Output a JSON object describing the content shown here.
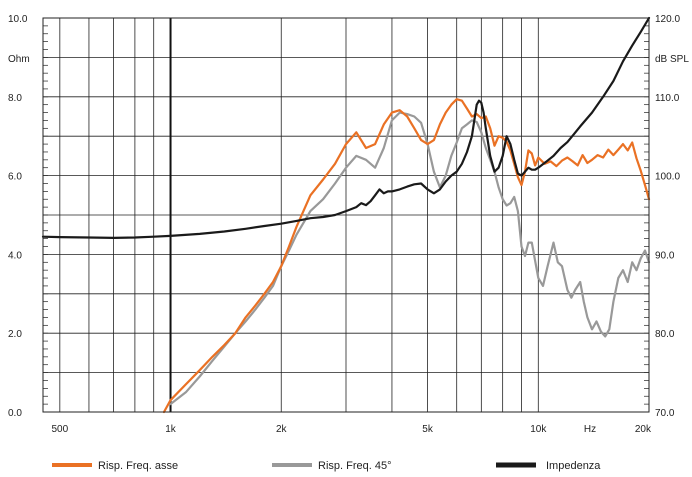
{
  "chart_data": {
    "type": "line",
    "x_scale": "log",
    "x_unit_label": "Hz",
    "xlim": [
      450,
      20000
    ],
    "x_ticks": [
      {
        "value": 500,
        "label": "500"
      },
      {
        "value": 1000,
        "label": "1k"
      },
      {
        "value": 2000,
        "label": "2k"
      },
      {
        "value": 5000,
        "label": "5k"
      },
      {
        "value": 10000,
        "label": "10k"
      },
      {
        "value": 20000,
        "label": "20k"
      }
    ],
    "left_axis": {
      "unit": "Ohm",
      "ylim": [
        0,
        10
      ],
      "ticks": [
        {
          "value": 0,
          "label": "0.0"
        },
        {
          "value": 2,
          "label": "2.0"
        },
        {
          "value": 4,
          "label": "4.0"
        },
        {
          "value": 6,
          "label": "6.0"
        },
        {
          "value": 8,
          "label": "8.0"
        },
        {
          "value": 10,
          "label": "10.0"
        }
      ]
    },
    "right_axis": {
      "unit": "dB SPL",
      "ylim": [
        70,
        120
      ],
      "ticks": [
        {
          "value": 70,
          "label": "70.0"
        },
        {
          "value": 80,
          "label": "80.0"
        },
        {
          "value": 90,
          "label": "90.0"
        },
        {
          "value": 100,
          "label": "100.0"
        },
        {
          "value": 110,
          "label": "110.0"
        },
        {
          "value": 120,
          "label": "120.0"
        }
      ]
    },
    "grid": true,
    "legend_position": "bottom",
    "series": [
      {
        "name": "Risp. Freq. asse",
        "axis": "right",
        "color": "#ea7124",
        "x": [
          960,
          1000,
          1100,
          1200,
          1300,
          1400,
          1500,
          1600,
          1700,
          1800,
          1900,
          2000,
          2100,
          2200,
          2400,
          2600,
          2800,
          3000,
          3200,
          3400,
          3600,
          3800,
          4000,
          4200,
          4400,
          4600,
          4800,
          5000,
          5200,
          5400,
          5600,
          5800,
          6000,
          6200,
          6400,
          6600,
          6800,
          7000,
          7200,
          7400,
          7600,
          7800,
          8000,
          8200,
          8400,
          8600,
          8800,
          9000,
          9200,
          9400,
          9600,
          9800,
          10000,
          10400,
          10800,
          11200,
          11600,
          12000,
          12400,
          12800,
          13200,
          13600,
          14000,
          14500,
          15000,
          15500,
          16000,
          16500,
          17000,
          17500,
          18000,
          18500,
          19000,
          19500,
          20000
        ],
        "y": [
          70,
          71.5,
          73.5,
          75.3,
          77,
          78.5,
          80,
          82,
          83.5,
          85,
          86.5,
          88.5,
          91,
          93.5,
          97.5,
          99.5,
          101.5,
          104,
          105.5,
          103.5,
          104,
          106.5,
          108,
          108.3,
          107.5,
          106,
          104.5,
          104,
          104.5,
          106.5,
          108,
          109,
          109.7,
          109.5,
          108.5,
          107.5,
          107.8,
          107.3,
          107.5,
          106,
          103.8,
          105,
          104.8,
          104.3,
          103.2,
          101.5,
          99.8,
          98.8,
          100.5,
          103.2,
          102.8,
          101.3,
          102.3,
          101.5,
          101.8,
          101.2,
          101.9,
          102.3,
          101.8,
          101.3,
          102.6,
          101.6,
          102,
          102.6,
          102.3,
          103.3,
          102.6,
          103.3,
          104,
          103.2,
          104.2,
          102.2,
          100.6,
          98.8,
          97
        ]
      },
      {
        "name": "Risp. Freq. 45°",
        "axis": "right",
        "color": "#999999",
        "x": [
          1000,
          1100,
          1200,
          1300,
          1400,
          1500,
          1600,
          1700,
          1800,
          1900,
          2000,
          2100,
          2200,
          2400,
          2600,
          2800,
          3000,
          3200,
          3400,
          3600,
          3800,
          4000,
          4200,
          4400,
          4600,
          4800,
          5000,
          5200,
          5400,
          5600,
          5800,
          6000,
          6200,
          6400,
          6600,
          6800,
          7000,
          7200,
          7400,
          7600,
          7800,
          8000,
          8200,
          8400,
          8600,
          8800,
          9000,
          9200,
          9400,
          9600,
          9800,
          10000,
          10300,
          10600,
          11000,
          11300,
          11600,
          12000,
          12300,
          12600,
          13000,
          13300,
          13600,
          14000,
          14400,
          14800,
          15200,
          15600,
          16000,
          16500,
          17000,
          17500,
          18000,
          18500,
          19000,
          19500,
          20000
        ],
        "y": [
          71,
          72.5,
          74.5,
          76.5,
          78.3,
          80,
          81.5,
          83,
          84.5,
          86,
          88.5,
          90.5,
          92.5,
          95.5,
          97,
          99,
          101,
          102.5,
          102,
          101,
          103.5,
          107,
          108,
          107.8,
          107.5,
          106.7,
          104,
          100.5,
          98.5,
          100,
          102.5,
          104.2,
          106,
          106.5,
          107,
          106.8,
          105.5,
          103.5,
          102,
          100.5,
          98.5,
          97,
          96.2,
          96.5,
          97.3,
          95.5,
          91,
          89.8,
          91.5,
          91.5,
          89.2,
          87,
          86,
          88.5,
          91.5,
          89,
          88.5,
          85.5,
          84.5,
          85.5,
          86.5,
          84,
          82,
          80.5,
          81.5,
          80.2,
          79.6,
          80.5,
          84,
          87,
          88,
          86.5,
          89,
          88,
          89.5,
          90.5,
          89
        ]
      },
      {
        "name": "Impedenza",
        "axis": "left",
        "color": "#1a1a1a",
        "x": [
          450,
          500,
          600,
          700,
          800,
          900,
          1000,
          1200,
          1400,
          1600,
          1800,
          2000,
          2200,
          2400,
          2600,
          2800,
          3000,
          3200,
          3300,
          3400,
          3500,
          3600,
          3700,
          3800,
          3900,
          4000,
          4200,
          4400,
          4600,
          4800,
          5000,
          5200,
          5400,
          5600,
          5800,
          6000,
          6200,
          6400,
          6600,
          6700,
          6800,
          6900,
          7000,
          7100,
          7200,
          7400,
          7600,
          7800,
          8000,
          8200,
          8400,
          8600,
          8800,
          9000,
          9200,
          9400,
          9600,
          9800,
          10000,
          10500,
          11000,
          11500,
          12000,
          12500,
          13000,
          14000,
          15000,
          16000,
          17000,
          18000,
          19000,
          20000
        ],
        "y": [
          4.45,
          4.44,
          4.43,
          4.42,
          4.43,
          4.45,
          4.47,
          4.52,
          4.58,
          4.65,
          4.72,
          4.78,
          4.85,
          4.92,
          4.95,
          5.0,
          5.1,
          5.2,
          5.3,
          5.25,
          5.35,
          5.5,
          5.65,
          5.55,
          5.6,
          5.6,
          5.65,
          5.72,
          5.78,
          5.8,
          5.65,
          5.55,
          5.65,
          5.85,
          6.0,
          6.1,
          6.3,
          6.6,
          7.0,
          7.4,
          7.8,
          7.9,
          7.85,
          7.6,
          7.2,
          6.5,
          6.1,
          6.2,
          6.5,
          7.0,
          6.8,
          6.4,
          6.05,
          6.0,
          6.1,
          6.2,
          6.15,
          6.15,
          6.2,
          6.35,
          6.5,
          6.7,
          6.85,
          7.05,
          7.25,
          7.6,
          8.0,
          8.4,
          8.9,
          9.3,
          9.65,
          10.0
        ]
      }
    ]
  }
}
